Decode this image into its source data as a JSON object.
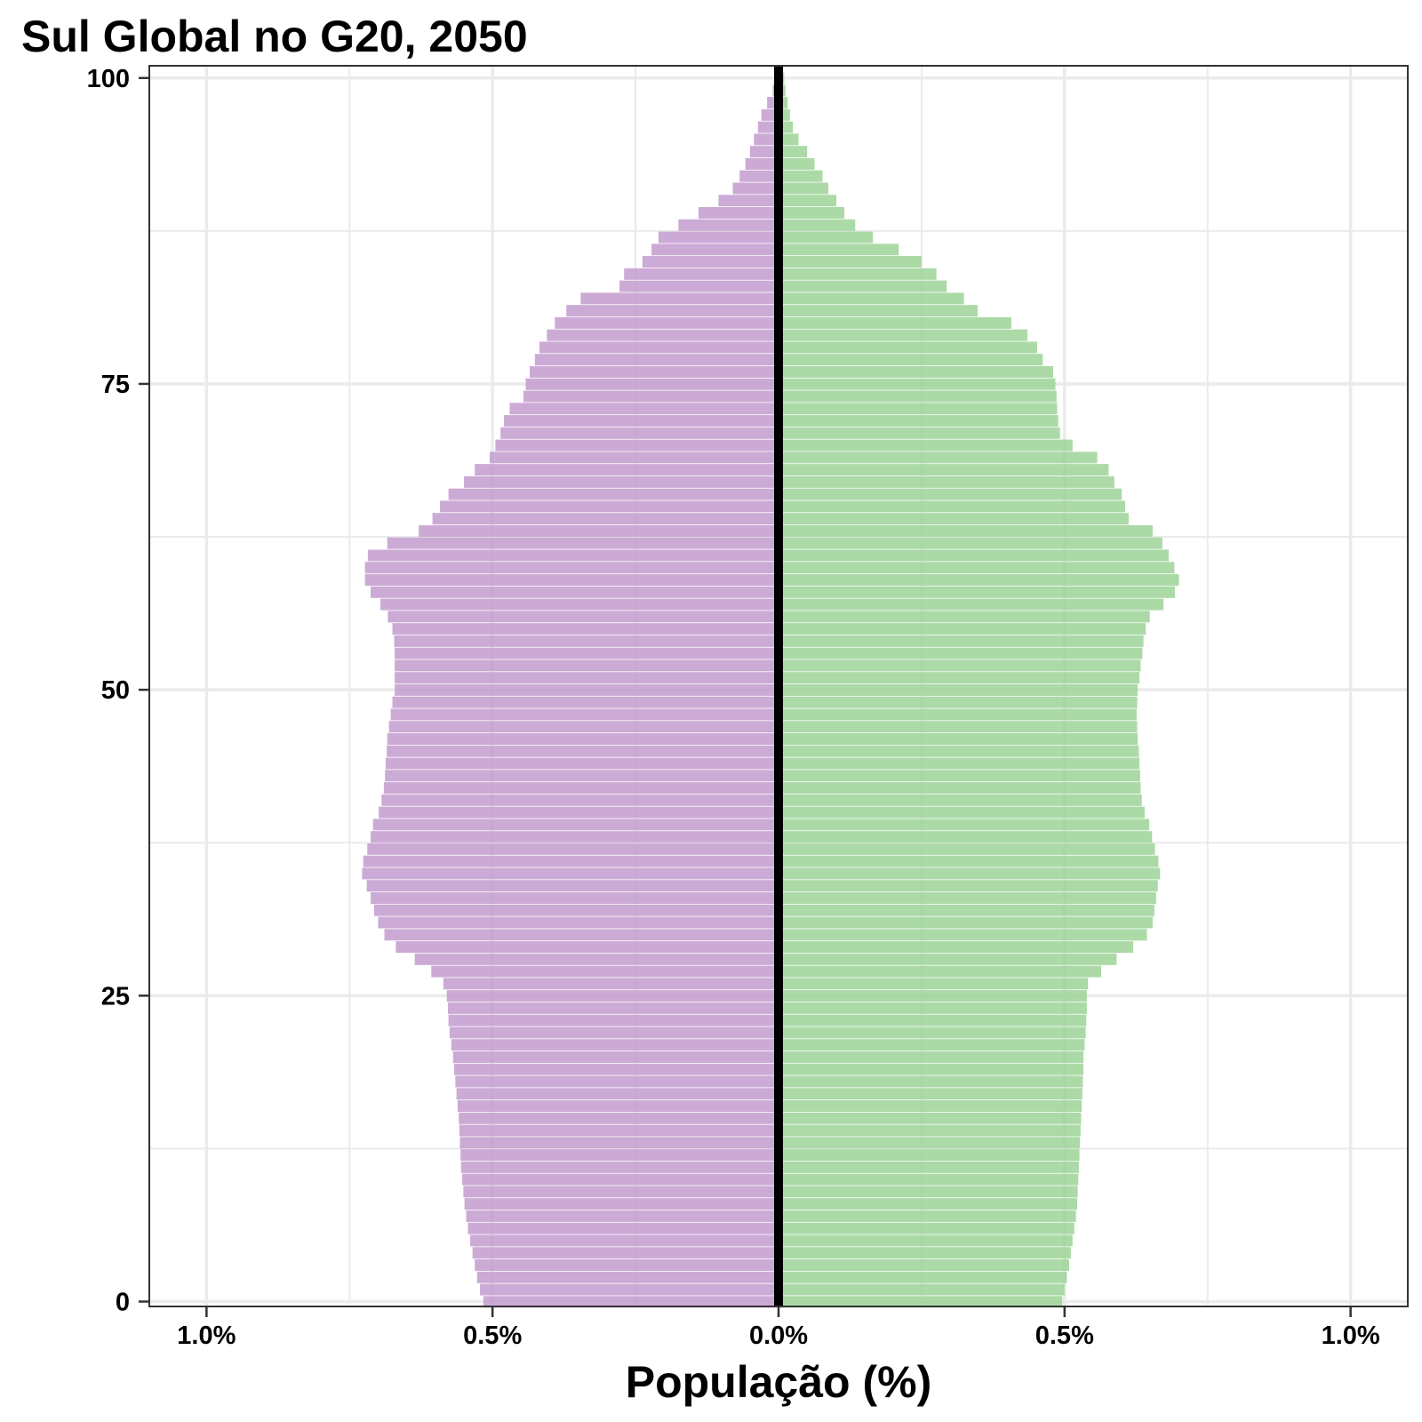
{
  "chart_data": {
    "type": "bar",
    "title": "Sul Global no G20, 2050",
    "xlabel": "População (%)",
    "ylabel": "",
    "xlim": [
      -1.1,
      1.1
    ],
    "ylim": [
      0,
      101
    ],
    "grid": true,
    "y_ticks": [
      0,
      25,
      50,
      75,
      100
    ],
    "x_ticks": [
      {
        "value": -1.0,
        "label": "1.0%"
      },
      {
        "value": -0.5,
        "label": "0.5%"
      },
      {
        "value": 0.0,
        "label": "0.0%"
      },
      {
        "value": 0.5,
        "label": "0.5%"
      },
      {
        "value": 1.0,
        "label": "1.0%"
      }
    ],
    "ages": [
      0,
      1,
      2,
      3,
      4,
      5,
      6,
      7,
      8,
      9,
      10,
      11,
      12,
      13,
      14,
      15,
      16,
      17,
      18,
      19,
      20,
      21,
      22,
      23,
      24,
      25,
      26,
      27,
      28,
      29,
      30,
      31,
      32,
      33,
      34,
      35,
      36,
      37,
      38,
      39,
      40,
      41,
      42,
      43,
      44,
      45,
      46,
      47,
      48,
      49,
      50,
      51,
      52,
      53,
      54,
      55,
      56,
      57,
      58,
      59,
      60,
      61,
      62,
      63,
      64,
      65,
      66,
      67,
      68,
      69,
      70,
      71,
      72,
      73,
      74,
      75,
      76,
      77,
      78,
      79,
      80,
      81,
      82,
      83,
      84,
      85,
      86,
      87,
      88,
      89,
      90,
      91,
      92,
      93,
      94,
      95,
      96,
      97,
      98,
      99,
      100
    ],
    "series": [
      {
        "color": "#c39bcf",
        "side": "left",
        "values": [
          0.516,
          0.522,
          0.527,
          0.531,
          0.535,
          0.539,
          0.543,
          0.546,
          0.549,
          0.551,
          0.553,
          0.555,
          0.556,
          0.557,
          0.558,
          0.559,
          0.561,
          0.563,
          0.565,
          0.567,
          0.569,
          0.572,
          0.575,
          0.577,
          0.578,
          0.58,
          0.586,
          0.607,
          0.636,
          0.669,
          0.689,
          0.7,
          0.707,
          0.713,
          0.72,
          0.728,
          0.726,
          0.719,
          0.713,
          0.709,
          0.699,
          0.694,
          0.69,
          0.688,
          0.687,
          0.685,
          0.684,
          0.681,
          0.678,
          0.675,
          0.671,
          0.671,
          0.671,
          0.671,
          0.672,
          0.675,
          0.683,
          0.696,
          0.713,
          0.723,
          0.723,
          0.718,
          0.684,
          0.629,
          0.605,
          0.592,
          0.577,
          0.55,
          0.531,
          0.505,
          0.495,
          0.486,
          0.48,
          0.47,
          0.446,
          0.442,
          0.435,
          0.426,
          0.418,
          0.405,
          0.391,
          0.371,
          0.346,
          0.278,
          0.27,
          0.238,
          0.222,
          0.21,
          0.175,
          0.14,
          0.105,
          0.08,
          0.068,
          0.058,
          0.05,
          0.043,
          0.036,
          0.03,
          0.02,
          0.01,
          0.004
        ]
      },
      {
        "color": "#9cd497",
        "side": "right",
        "values": [
          0.496,
          0.5,
          0.504,
          0.508,
          0.511,
          0.514,
          0.517,
          0.52,
          0.522,
          0.523,
          0.524,
          0.525,
          0.526,
          0.527,
          0.528,
          0.529,
          0.53,
          0.531,
          0.532,
          0.533,
          0.533,
          0.535,
          0.537,
          0.538,
          0.539,
          0.539,
          0.541,
          0.564,
          0.591,
          0.62,
          0.644,
          0.654,
          0.657,
          0.66,
          0.663,
          0.667,
          0.664,
          0.658,
          0.653,
          0.648,
          0.64,
          0.635,
          0.633,
          0.632,
          0.631,
          0.63,
          0.628,
          0.627,
          0.626,
          0.627,
          0.628,
          0.631,
          0.633,
          0.636,
          0.638,
          0.642,
          0.649,
          0.673,
          0.693,
          0.7,
          0.692,
          0.682,
          0.671,
          0.654,
          0.612,
          0.606,
          0.6,
          0.587,
          0.577,
          0.557,
          0.514,
          0.492,
          0.489,
          0.487,
          0.486,
          0.484,
          0.48,
          0.462,
          0.452,
          0.435,
          0.407,
          0.348,
          0.324,
          0.294,
          0.276,
          0.25,
          0.21,
          0.165,
          0.134,
          0.115,
          0.101,
          0.087,
          0.077,
          0.063,
          0.05,
          0.035,
          0.025,
          0.02,
          0.016,
          0.012,
          0.01
        ]
      }
    ]
  }
}
